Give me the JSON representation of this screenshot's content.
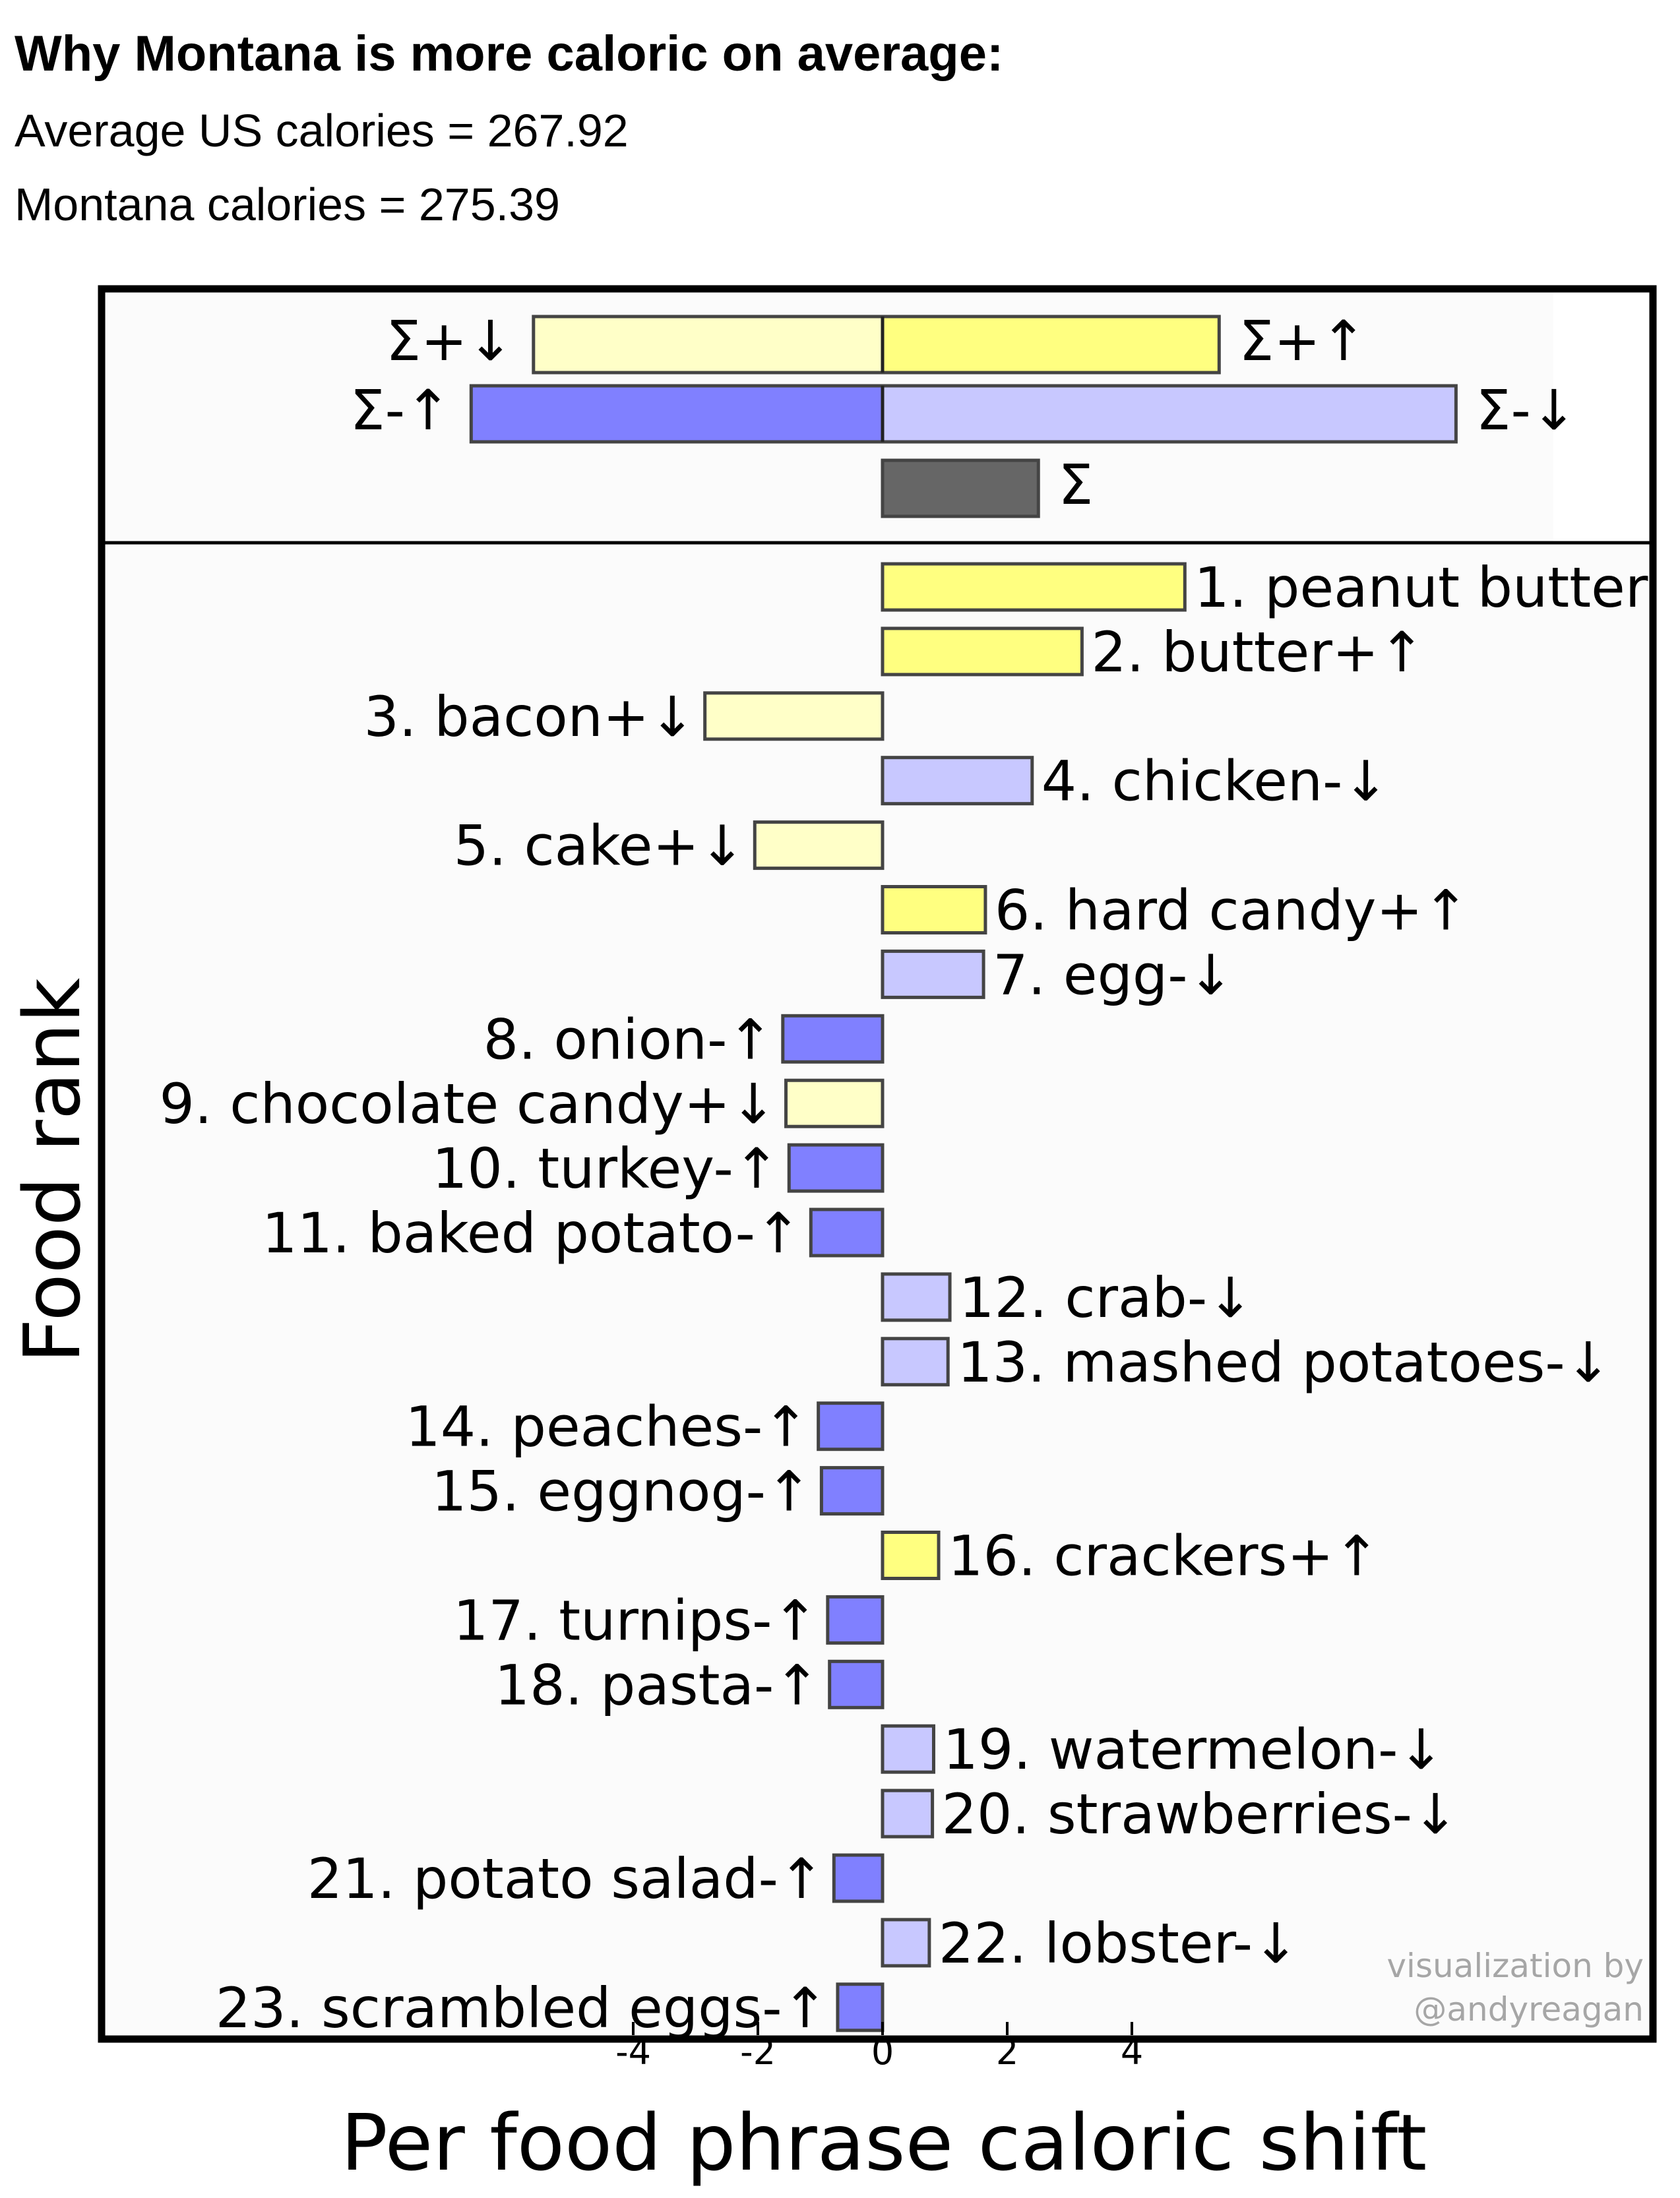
{
  "header": {
    "title": "Why Montana is more caloric on average:",
    "avg_us": "Average US calories = 267.92",
    "montana": "Montana calories = 275.39"
  },
  "credit": {
    "line1": "visualization by",
    "line2": "@andyreagan"
  },
  "colors": {
    "pos_up": "#ffff80",
    "pos_down": "#ffffc8",
    "neg_up": "#8080ff",
    "neg_down": "#c8c8ff",
    "total": "#666666",
    "bar_edge": "#444444"
  },
  "chart_data": {
    "type": "bar",
    "orientation": "horizontal",
    "xlabel": "Per food phrase caloric shift",
    "ylabel": "Food rank",
    "xticks": [
      "-4",
      "-2",
      "0",
      "2",
      "4"
    ],
    "xlim": [
      -13.4,
      12.4
    ],
    "summary": [
      {
        "label": "Σ+↓",
        "value": -5.6,
        "kind": "pos_down",
        "side": "left"
      },
      {
        "label": "Σ+↑",
        "value": 5.4,
        "kind": "pos_up",
        "side": "right"
      },
      {
        "label": "Σ-↑",
        "value": -6.6,
        "kind": "neg_up",
        "side": "left"
      },
      {
        "label": "Σ-↓",
        "value": 9.2,
        "kind": "neg_down",
        "side": "right"
      },
      {
        "label": "Σ",
        "value": 2.5,
        "kind": "total",
        "side": "right"
      }
    ],
    "items": [
      {
        "label": "1. peanut butter",
        "value": 4.85,
        "kind": "pos_up"
      },
      {
        "label": "2. butter+↑",
        "value": 3.2,
        "kind": "pos_up"
      },
      {
        "label": "3. bacon+↓",
        "value": -2.85,
        "kind": "pos_down"
      },
      {
        "label": "4. chicken-↓",
        "value": 2.4,
        "kind": "neg_down"
      },
      {
        "label": "5. cake+↓",
        "value": -2.05,
        "kind": "pos_down"
      },
      {
        "label": "6. hard candy+↑",
        "value": 1.65,
        "kind": "pos_up"
      },
      {
        "label": "7. egg-↓",
        "value": 1.62,
        "kind": "neg_down"
      },
      {
        "label": "8. onion-↑",
        "value": -1.6,
        "kind": "neg_up"
      },
      {
        "label": "9. chocolate candy+↓",
        "value": -1.55,
        "kind": "pos_down"
      },
      {
        "label": "10. turkey-↑",
        "value": -1.5,
        "kind": "neg_up"
      },
      {
        "label": "11. baked potato-↑",
        "value": -1.15,
        "kind": "neg_up"
      },
      {
        "label": "12. crab-↓",
        "value": 1.08,
        "kind": "neg_down"
      },
      {
        "label": "13. mashed potatoes-↓",
        "value": 1.05,
        "kind": "neg_down"
      },
      {
        "label": "14. peaches-↑",
        "value": -1.03,
        "kind": "neg_up"
      },
      {
        "label": "15. eggnog-↑",
        "value": -0.98,
        "kind": "neg_up"
      },
      {
        "label": "16. crackers+↑",
        "value": 0.9,
        "kind": "pos_up"
      },
      {
        "label": "17. turnips-↑",
        "value": -0.88,
        "kind": "neg_up"
      },
      {
        "label": "18. pasta-↑",
        "value": -0.85,
        "kind": "neg_up"
      },
      {
        "label": "19. watermelon-↓",
        "value": 0.82,
        "kind": "neg_down"
      },
      {
        "label": "20. strawberries-↓",
        "value": 0.8,
        "kind": "neg_down"
      },
      {
        "label": "21. potato salad-↑",
        "value": -0.78,
        "kind": "neg_up"
      },
      {
        "label": "22. lobster-↓",
        "value": 0.75,
        "kind": "neg_down"
      },
      {
        "label": "23. scrambled eggs-↑",
        "value": -0.72,
        "kind": "neg_up"
      }
    ]
  }
}
